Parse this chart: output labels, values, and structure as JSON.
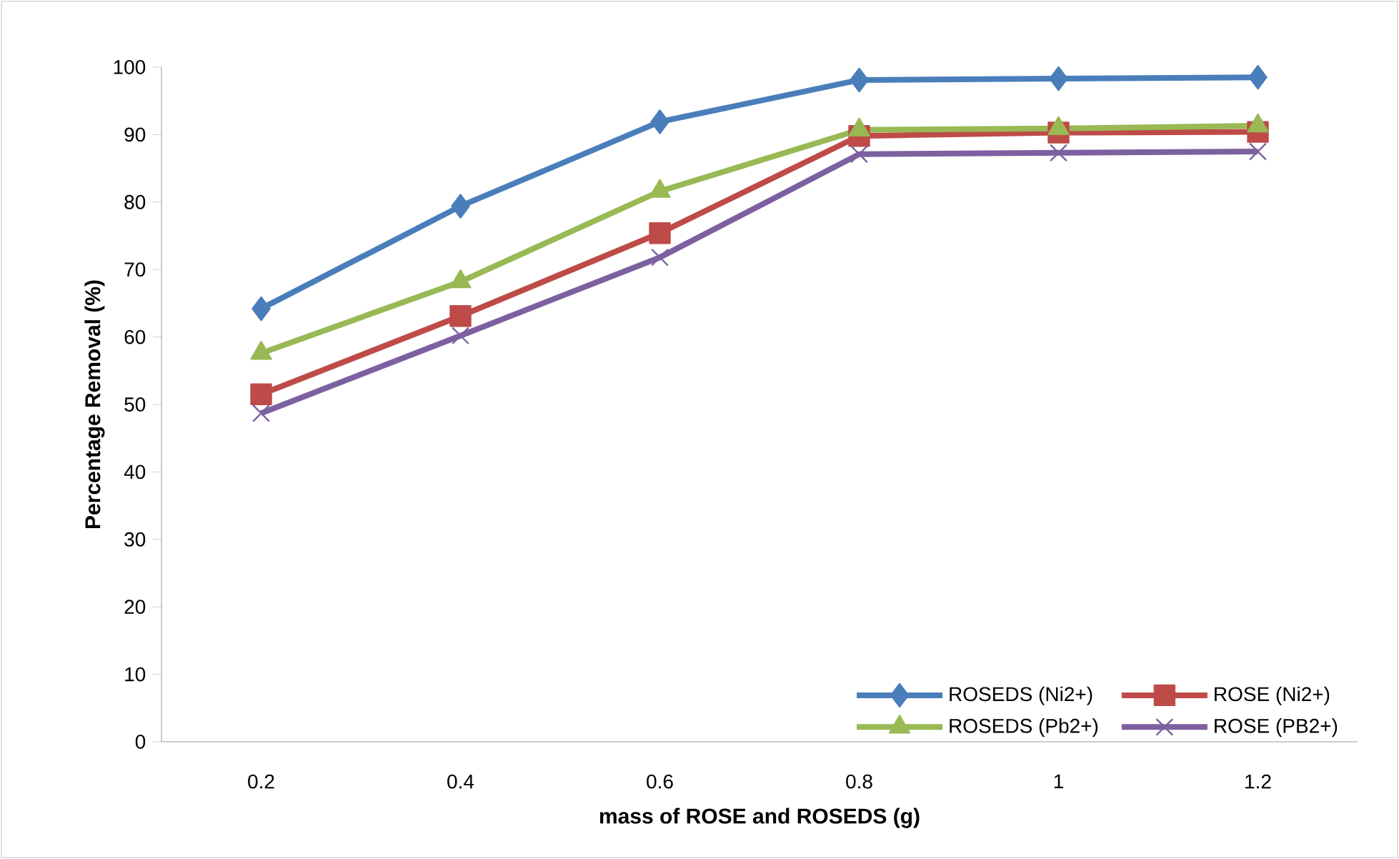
{
  "chart_data": {
    "type": "line",
    "xlabel": "mass of ROSE and ROSEDS (g)",
    "ylabel": "Percentage Removal (%)",
    "categories": [
      "0.2",
      "0.4",
      "0.6",
      "0.8",
      "1",
      "1.2"
    ],
    "ylim": [
      0,
      100
    ],
    "yticks": [
      0,
      10,
      20,
      30,
      40,
      50,
      60,
      70,
      80,
      90,
      100
    ],
    "grid": false,
    "legend": "bottom right",
    "line_style": "solid",
    "series": [
      {
        "name": "ROSEDS (Ni2+)",
        "color": "#4a7ebb",
        "marker": "diamond",
        "values": [
          64.2,
          79.4,
          91.9,
          98.1,
          98.3,
          98.5
        ]
      },
      {
        "name": "ROSE (Ni2+)",
        "color": "#be4b48",
        "marker": "square",
        "values": [
          51.5,
          63.1,
          75.4,
          89.8,
          90.3,
          90.4
        ]
      },
      {
        "name": "ROSEDS (Pb2+)",
        "color": "#98b954",
        "marker": "triangle",
        "values": [
          57.6,
          68.2,
          81.6,
          90.7,
          90.9,
          91.3
        ]
      },
      {
        "name": "ROSE (PB2+)",
        "color": "#7d60a0",
        "marker": "cross",
        "values": [
          48.7,
          60.2,
          71.8,
          87.1,
          87.3,
          87.5
        ]
      }
    ]
  }
}
